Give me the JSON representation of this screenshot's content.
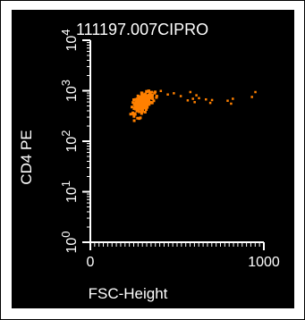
{
  "colors": {
    "background": "#000000",
    "foreground": "#ffffff",
    "points": "#ff8000"
  },
  "chart_data": {
    "type": "scatter",
    "title": "111197.007CIPRO",
    "xlabel": "FSC-Height",
    "ylabel": "CD4 PE",
    "x_scale": "linear",
    "y_scale": "log",
    "xlim": [
      0,
      1000
    ],
    "ylim": [
      1,
      10000
    ],
    "x_ticks": [
      {
        "value": 0,
        "label": "0"
      },
      {
        "value": 1000,
        "label": "1000"
      }
    ],
    "y_ticks": [
      {
        "value": 1,
        "base": "10",
        "exp": "0"
      },
      {
        "value": 10,
        "base": "10",
        "exp": "1"
      },
      {
        "value": 100,
        "base": "10",
        "exp": "2"
      },
      {
        "value": 1000,
        "base": "10",
        "exp": "3"
      },
      {
        "value": 10000,
        "base": "10",
        "exp": "4"
      }
    ],
    "grid": false,
    "legend": "none",
    "cluster": {
      "x_center": 305,
      "x_spread": 55,
      "y_center": 600,
      "y_spread_log10": 0.15,
      "count": 260
    },
    "points": [
      {
        "x": 405,
        "y": 1000
      },
      {
        "x": 445,
        "y": 850
      },
      {
        "x": 480,
        "y": 900
      },
      {
        "x": 520,
        "y": 790
      },
      {
        "x": 560,
        "y": 650
      },
      {
        "x": 575,
        "y": 950
      },
      {
        "x": 590,
        "y": 700
      },
      {
        "x": 600,
        "y": 600
      },
      {
        "x": 610,
        "y": 820
      },
      {
        "x": 625,
        "y": 720
      },
      {
        "x": 665,
        "y": 680
      },
      {
        "x": 690,
        "y": 580
      },
      {
        "x": 700,
        "y": 660
      },
      {
        "x": 790,
        "y": 640
      },
      {
        "x": 810,
        "y": 560
      },
      {
        "x": 820,
        "y": 700
      },
      {
        "x": 930,
        "y": 760
      },
      {
        "x": 950,
        "y": 950
      }
    ]
  }
}
